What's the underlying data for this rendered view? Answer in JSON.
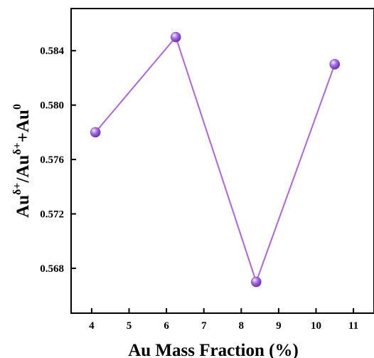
{
  "chart_data": {
    "type": "line",
    "xlabel": "Au Mass Fraction (%)",
    "ylabel": {
      "base1": "Au",
      "sup1": "δ+",
      "sep": "/Au",
      "sup2": "δ+",
      "plus": "+Au",
      "sup3": "0"
    },
    "xlim": [
      3.45,
      11.55
    ],
    "ylim": [
      0.5647,
      0.5871
    ],
    "x_ticks": [
      "4",
      "5",
      "6",
      "7",
      "8",
      "9",
      "10",
      "11"
    ],
    "y_ticks": [
      "0.568",
      "0.572",
      "0.576",
      "0.580",
      "0.584"
    ],
    "series": [
      {
        "x": [
          4.1,
          6.25,
          8.4,
          10.5
        ],
        "y": [
          0.578,
          0.585,
          0.567,
          0.583
        ]
      }
    ],
    "line_color": "#b064e0",
    "marker_color": "#a66fe0",
    "grid": false
  }
}
